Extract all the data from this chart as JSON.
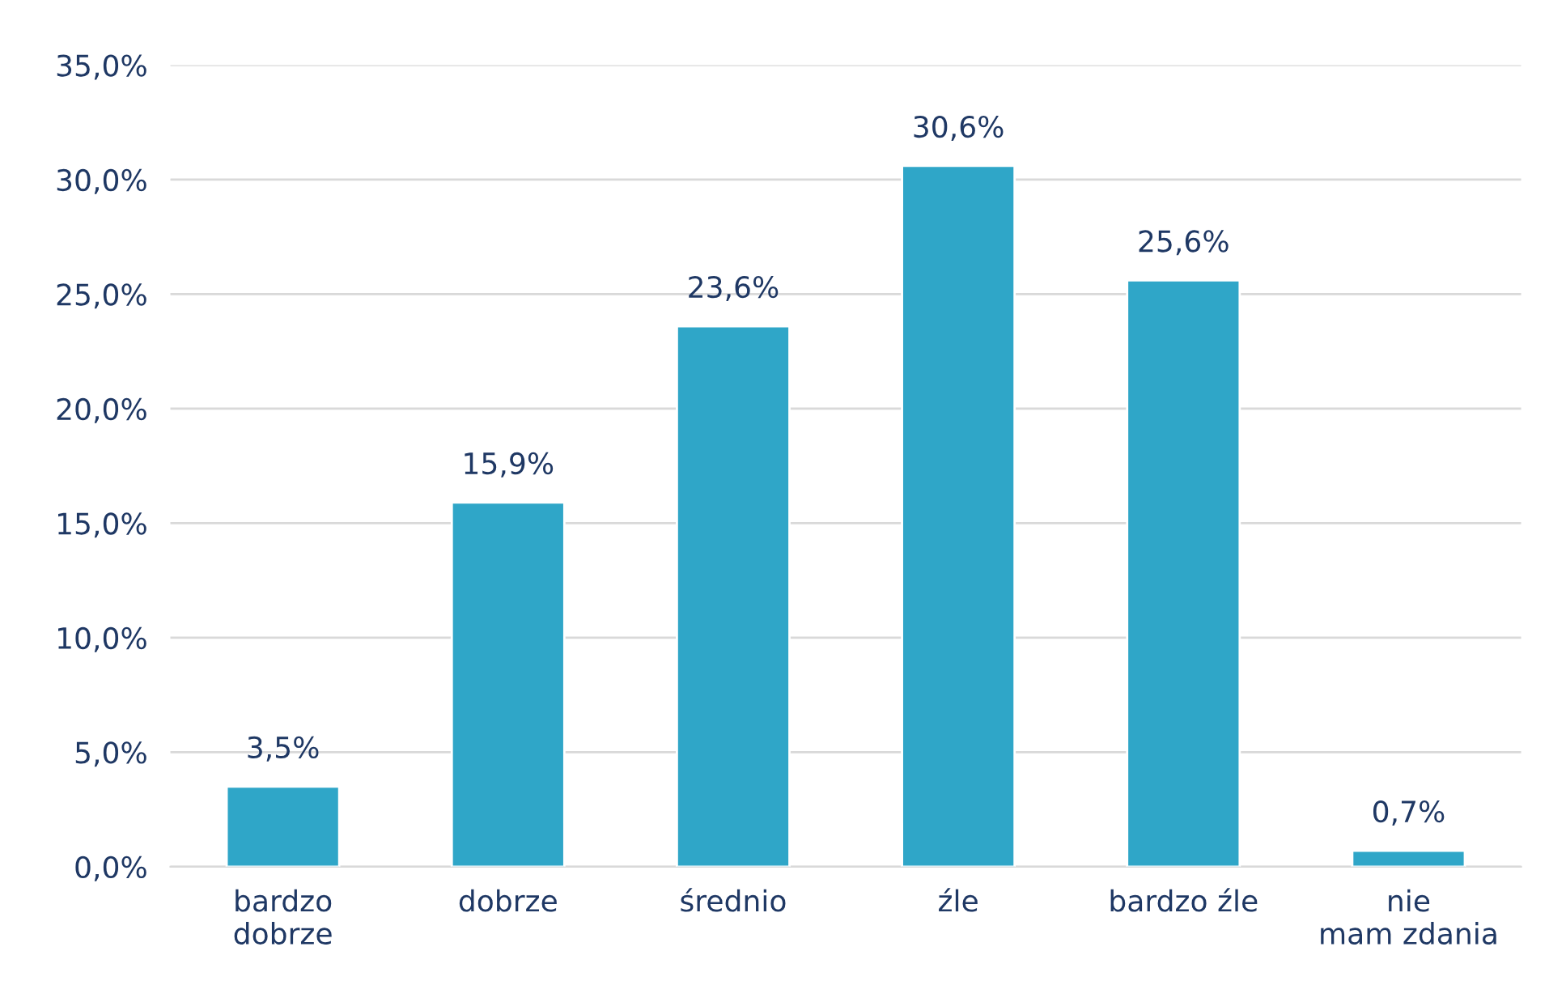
{
  "chart_data": {
    "type": "bar",
    "categories": [
      "bardzo dobrze",
      "dobrze",
      "średnio",
      "źle",
      "bardzo źle",
      "nie mam zdania"
    ],
    "values": [
      3.5,
      15.9,
      23.6,
      30.6,
      25.6,
      0.7
    ],
    "value_labels": [
      "3,5%",
      "15,9%",
      "23,6%",
      "30,6%",
      "25,6%",
      "0,7%"
    ],
    "color": "#2fa6c8",
    "ylim": [
      0,
      35
    ],
    "yticks": [
      {
        "value": 0,
        "label": "0,0%"
      },
      {
        "value": 5,
        "label": "5,0%"
      },
      {
        "value": 10,
        "label": "10,0%"
      },
      {
        "value": 15,
        "label": "15,0%"
      },
      {
        "value": 20,
        "label": "20,0%"
      },
      {
        "value": 25,
        "label": "25,0%"
      },
      {
        "value": 30,
        "label": "30,0%"
      },
      {
        "value": 35,
        "label": "35,0%"
      }
    ],
    "grid": "y"
  }
}
